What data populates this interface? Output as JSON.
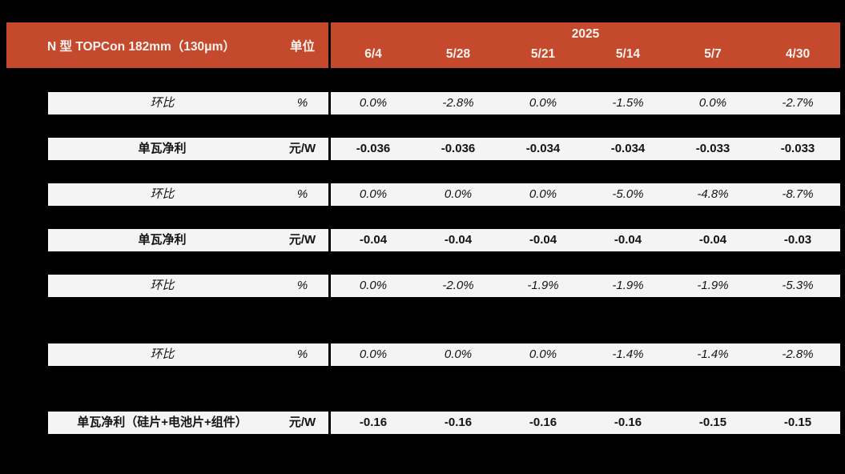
{
  "colors": {
    "page_bg": "#000000",
    "header_bg": "#C5492C",
    "header_text": "#FDF4F0",
    "row_bg": "#F4F4F4",
    "body_text": "#141414"
  },
  "chart_data": {
    "type": "table",
    "title": "N 型 TOPCon 182mm（130μm）",
    "unit_header": "单位",
    "year": "2025",
    "columns": [
      "6/4",
      "5/28",
      "5/21",
      "5/14",
      "5/7",
      "4/30"
    ],
    "rows": [
      {
        "label": "环比",
        "unit": "%",
        "style": "italic",
        "values": [
          "0.0%",
          "-2.8%",
          "0.0%",
          "-1.5%",
          "0.0%",
          "-2.7%"
        ]
      },
      {
        "label": "单瓦净利",
        "unit": "元/W",
        "style": "bold",
        "values": [
          "-0.036",
          "-0.036",
          "-0.034",
          "-0.034",
          "-0.033",
          "-0.033"
        ]
      },
      {
        "label": "环比",
        "unit": "%",
        "style": "italic",
        "values": [
          "0.0%",
          "0.0%",
          "0.0%",
          "-5.0%",
          "-4.8%",
          "-8.7%"
        ]
      },
      {
        "label": "单瓦净利",
        "unit": "元/W",
        "style": "bold",
        "values": [
          "-0.04",
          "-0.04",
          "-0.04",
          "-0.04",
          "-0.04",
          "-0.03"
        ]
      },
      {
        "label": "环比",
        "unit": "%",
        "style": "italic",
        "values": [
          "0.0%",
          "-2.0%",
          "-1.9%",
          "-1.9%",
          "-1.9%",
          "-5.3%"
        ]
      },
      {
        "label": "环比",
        "unit": "%",
        "style": "italic",
        "values": [
          "0.0%",
          "0.0%",
          "0.0%",
          "-1.4%",
          "-1.4%",
          "-2.8%"
        ]
      },
      {
        "label": "单瓦净利（硅片+电池片+组件）",
        "unit": "元/W",
        "style": "bold",
        "values": [
          "-0.16",
          "-0.16",
          "-0.16",
          "-0.16",
          "-0.15",
          "-0.15"
        ]
      }
    ]
  }
}
